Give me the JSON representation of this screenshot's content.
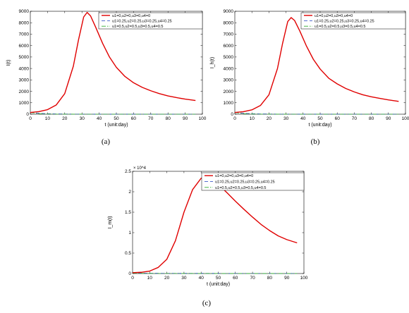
{
  "legend_labels": [
    "u1=0,u2=0,u3=0,u4=0",
    "u1=0.25,u2=0.25,u3=0.25,u4=0.25",
    "u1=0.5,u2=0.5,u3=0.5,u4=0.5"
  ],
  "series_styles": [
    {
      "color": "#e00000",
      "dash": "",
      "width": 1.4
    },
    {
      "color": "#1f3fbf",
      "dash": "5,3",
      "width": 0.8
    },
    {
      "color": "#2fae2f",
      "dash": "6,2,1.5,2",
      "width": 0.8
    }
  ],
  "chart_data": [
    {
      "type": "line",
      "caption": "(a)",
      "xlabel": "t (unit:day)",
      "ylabel": "I(t)",
      "xlim": [
        0,
        100
      ],
      "ylim": [
        0,
        9000
      ],
      "xticks": [
        0,
        10,
        20,
        30,
        40,
        50,
        60,
        70,
        80,
        90,
        100
      ],
      "yticks": [
        0,
        1000,
        2000,
        3000,
        4000,
        5000,
        6000,
        7000,
        8000,
        9000
      ],
      "y_exponent": "",
      "x": [
        0,
        5,
        10,
        15,
        20,
        25,
        28,
        31,
        33,
        35,
        38,
        42,
        46,
        50,
        55,
        60,
        65,
        70,
        75,
        80,
        85,
        90,
        96
      ],
      "series": [
        {
          "values": [
            150,
            230,
            400,
            800,
            1800,
            4200,
            6500,
            8500,
            8900,
            8600,
            7600,
            6200,
            5000,
            4100,
            3300,
            2750,
            2350,
            2050,
            1800,
            1600,
            1450,
            1320,
            1200
          ]
        },
        {
          "values": [
            150,
            80,
            40,
            25,
            15,
            10,
            8,
            7,
            6,
            5,
            5,
            4,
            4,
            3,
            3,
            3,
            2,
            2,
            2,
            2,
            2,
            2,
            2
          ]
        },
        {
          "values": [
            150,
            50,
            15,
            8,
            5,
            4,
            3,
            3,
            2,
            2,
            2,
            2,
            2,
            1,
            1,
            1,
            1,
            1,
            1,
            1,
            1,
            1,
            1
          ]
        }
      ]
    },
    {
      "type": "line",
      "caption": "(b)",
      "xlabel": "t (unit:day)",
      "ylabel": "I_h(t)",
      "xlim": [
        0,
        100
      ],
      "ylim": [
        0,
        9000
      ],
      "xticks": [
        0,
        10,
        20,
        30,
        40,
        50,
        60,
        70,
        80,
        90,
        100
      ],
      "yticks": [
        0,
        1000,
        2000,
        3000,
        4000,
        5000,
        6000,
        7000,
        8000,
        9000
      ],
      "y_exponent": "",
      "x": [
        0,
        5,
        10,
        15,
        20,
        25,
        28,
        31,
        33,
        35,
        38,
        42,
        46,
        50,
        55,
        60,
        65,
        70,
        75,
        80,
        85,
        90,
        96
      ],
      "series": [
        {
          "values": [
            150,
            220,
            380,
            760,
            1700,
            4000,
            6200,
            8100,
            8450,
            8200,
            7300,
            5950,
            4800,
            3950,
            3150,
            2650,
            2250,
            1950,
            1700,
            1520,
            1380,
            1250,
            1120
          ]
        },
        {
          "values": [
            150,
            80,
            40,
            25,
            15,
            10,
            8,
            7,
            6,
            5,
            5,
            4,
            4,
            3,
            3,
            3,
            2,
            2,
            2,
            2,
            2,
            2,
            2
          ]
        },
        {
          "values": [
            150,
            50,
            15,
            8,
            5,
            4,
            3,
            3,
            2,
            2,
            2,
            2,
            2,
            1,
            1,
            1,
            1,
            1,
            1,
            1,
            1,
            1,
            1
          ]
        }
      ]
    },
    {
      "type": "line",
      "caption": "(c)",
      "xlabel": "t (unit:day)",
      "ylabel": "I_m(t)",
      "xlim": [
        0,
        100
      ],
      "ylim": [
        0,
        2.5
      ],
      "xticks": [
        0,
        10,
        20,
        30,
        40,
        50,
        60,
        70,
        80,
        90,
        100
      ],
      "yticks": [
        0,
        0.5,
        1,
        1.5,
        2,
        2.5
      ],
      "y_exponent": "× 10^4",
      "x": [
        0,
        5,
        10,
        15,
        20,
        25,
        30,
        35,
        40,
        43,
        46,
        50,
        55,
        60,
        65,
        70,
        75,
        80,
        85,
        90,
        96
      ],
      "series": [
        {
          "values": [
            0.02,
            0.03,
            0.06,
            0.15,
            0.35,
            0.8,
            1.5,
            2.05,
            2.33,
            2.37,
            2.32,
            2.18,
            1.98,
            1.77,
            1.57,
            1.38,
            1.2,
            1.05,
            0.92,
            0.83,
            0.75
          ]
        },
        {
          "values": [
            0.01,
            0.008,
            0.006,
            0.005,
            0.004,
            0.004,
            0.003,
            0.003,
            0.003,
            0.003,
            0.003,
            0.003,
            0.002,
            0.002,
            0.002,
            0.002,
            0.002,
            0.002,
            0.002,
            0.002,
            0.002
          ]
        },
        {
          "values": [
            0.01,
            0.005,
            0.003,
            0.002,
            0.002,
            0.002,
            0.001,
            0.001,
            0.001,
            0.001,
            0.001,
            0.001,
            0.001,
            0.001,
            0.001,
            0.001,
            0.001,
            0.001,
            0.001,
            0.001,
            0.001
          ]
        }
      ]
    }
  ]
}
